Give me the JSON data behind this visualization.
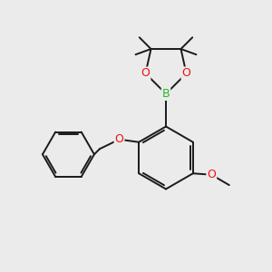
{
  "bg_color": "#ebebeb",
  "bond_color": "#1a1a1a",
  "oxygen_color": "#ee1111",
  "boron_color": "#22bb22",
  "lw": 1.4,
  "xlim": [
    0,
    10
  ],
  "ylim": [
    0,
    10
  ],
  "figsize": [
    3.0,
    3.0
  ],
  "dpi": 100
}
